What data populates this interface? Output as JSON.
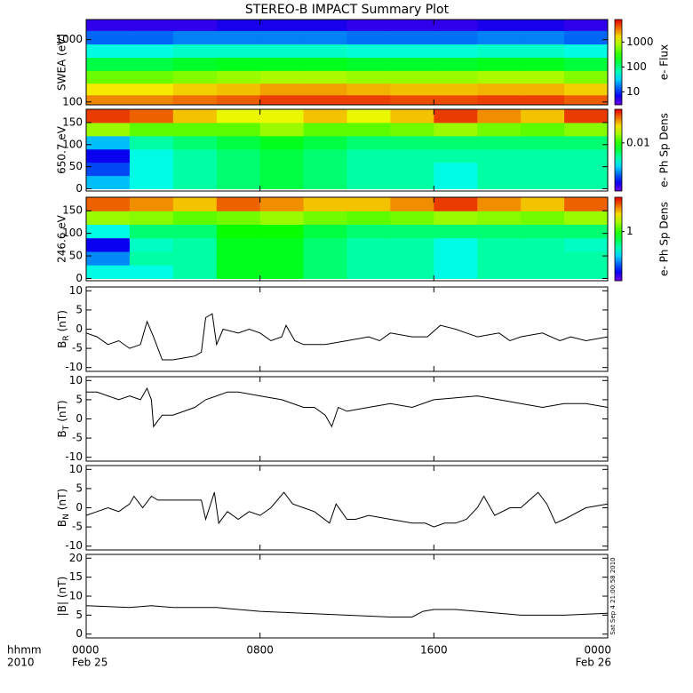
{
  "chart_data": [
    {
      "type": "heatmap",
      "title": "STEREO-B IMPACT Summary Plot",
      "ylabel": "SWEA (eV)",
      "ylog": true,
      "ylim": [
        90,
        2100
      ],
      "yticks": [
        100,
        1000
      ],
      "x_bins": [
        0,
        2,
        4,
        6,
        8,
        10,
        12,
        14,
        16,
        18,
        20,
        22,
        24
      ],
      "y_bins": [
        90,
        130,
        200,
        320,
        520,
        850,
        1400,
        2100
      ],
      "z": [
        [
          3000,
          3000,
          3500,
          4000,
          5000,
          5000,
          5000,
          4500,
          4500,
          5000,
          5000,
          4000
        ],
        [
          1500,
          1500,
          1800,
          2000,
          2500,
          2500,
          2200,
          2000,
          2000,
          2200,
          2200,
          1800
        ],
        [
          500,
          500,
          600,
          700,
          800,
          800,
          700,
          700,
          700,
          800,
          800,
          600
        ],
        [
          150,
          150,
          180,
          200,
          200,
          200,
          180,
          180,
          180,
          200,
          200,
          160
        ],
        [
          50,
          50,
          60,
          60,
          60,
          60,
          55,
          55,
          55,
          60,
          60,
          50
        ],
        [
          15,
          15,
          18,
          18,
          18,
          18,
          16,
          16,
          16,
          18,
          18,
          15
        ],
        [
          5,
          5,
          5,
          6,
          6,
          6,
          5,
          5,
          5,
          6,
          6,
          5
        ]
      ],
      "zlog": true,
      "zlim": [
        3,
        8000
      ],
      "zticks": [
        10,
        100,
        1000
      ],
      "colorbar_label": "e- Flux"
    },
    {
      "type": "heatmap",
      "ylabel": "650.7 eV",
      "ylog": false,
      "ylim": [
        -5,
        180
      ],
      "yticks": [
        0,
        50,
        100,
        150
      ],
      "x_bins": [
        0,
        2,
        4,
        6,
        8,
        10,
        12,
        14,
        16,
        18,
        20,
        22,
        24
      ],
      "y_bins": [
        0,
        30,
        60,
        90,
        120,
        150,
        180
      ],
      "z": [
        [
          0.003,
          0.004,
          0.005,
          0.006,
          0.007,
          0.006,
          0.005,
          0.005,
          0.004,
          0.005,
          0.005,
          0.005
        ],
        [
          0.002,
          0.004,
          0.005,
          0.006,
          0.007,
          0.006,
          0.005,
          0.005,
          0.004,
          0.005,
          0.005,
          0.005
        ],
        [
          0.0015,
          0.004,
          0.005,
          0.006,
          0.007,
          0.006,
          0.005,
          0.005,
          0.005,
          0.005,
          0.005,
          0.005
        ],
        [
          0.003,
          0.005,
          0.006,
          0.007,
          0.008,
          0.007,
          0.006,
          0.006,
          0.006,
          0.006,
          0.006,
          0.006
        ],
        [
          0.015,
          0.012,
          0.012,
          0.012,
          0.015,
          0.012,
          0.012,
          0.013,
          0.015,
          0.013,
          0.012,
          0.014
        ],
        [
          0.04,
          0.035,
          0.025,
          0.02,
          0.02,
          0.025,
          0.02,
          0.025,
          0.04,
          0.03,
          0.025,
          0.04
        ]
      ],
      "zlog": true,
      "zlim": [
        0.001,
        0.05
      ],
      "zticks": [
        0.01
      ],
      "colorbar_label": "e- Ph Sp Dens"
    },
    {
      "type": "heatmap",
      "ylabel": "246.6 eV",
      "ylog": false,
      "ylim": [
        -5,
        180
      ],
      "yticks": [
        0,
        50,
        100,
        150
      ],
      "x_bins": [
        0,
        2,
        4,
        6,
        8,
        10,
        12,
        14,
        16,
        18,
        20,
        22,
        24
      ],
      "y_bins": [
        0,
        30,
        60,
        90,
        120,
        150,
        180
      ],
      "z": [
        [
          0.4,
          0.4,
          0.5,
          0.8,
          0.8,
          0.6,
          0.5,
          0.5,
          0.4,
          0.5,
          0.5,
          0.5
        ],
        [
          0.25,
          0.5,
          0.5,
          0.8,
          0.8,
          0.6,
          0.5,
          0.5,
          0.4,
          0.5,
          0.5,
          0.5
        ],
        [
          0.15,
          0.45,
          0.5,
          0.8,
          0.8,
          0.6,
          0.5,
          0.5,
          0.4,
          0.5,
          0.5,
          0.45
        ],
        [
          0.4,
          0.6,
          0.6,
          0.9,
          0.9,
          0.7,
          0.6,
          0.6,
          0.6,
          0.6,
          0.6,
          0.6
        ],
        [
          1.5,
          1.4,
          1.2,
          1.3,
          1.5,
          1.3,
          1.2,
          1.3,
          1.5,
          1.4,
          1.3,
          1.5
        ],
        [
          3.5,
          3,
          2.5,
          3.5,
          3,
          2.5,
          2.5,
          3,
          4,
          3,
          2.5,
          3.5
        ]
      ],
      "zlog": true,
      "zlim": [
        0.1,
        5
      ],
      "zticks": [
        1
      ],
      "colorbar_label": "e- Ph Sp Dens"
    },
    {
      "type": "line",
      "ylabel": [
        "B",
        "R",
        "(nT)"
      ],
      "ylim": [
        -11,
        11
      ],
      "yticks": [
        -10,
        -5,
        0,
        5,
        10
      ],
      "color": "#000000",
      "x": [
        0,
        0.5,
        1,
        1.5,
        2,
        2.5,
        2.8,
        3.1,
        3.5,
        4,
        4.5,
        5,
        5.3,
        5.5,
        5.8,
        6,
        6.3,
        7,
        7.5,
        8,
        8.5,
        9,
        9.2,
        9.6,
        10,
        11,
        12,
        13,
        13.5,
        14,
        15,
        15.7,
        16.3,
        17,
        17.5,
        18,
        19,
        19.5,
        20,
        21,
        21.8,
        22.3,
        23,
        24
      ],
      "values": [
        -1,
        -2,
        -4,
        -3,
        -5,
        -4,
        2,
        -2,
        -8,
        -8,
        -7.5,
        -7,
        -6,
        3,
        4,
        -4,
        0,
        -1,
        0,
        -1,
        -3,
        -2,
        1,
        -3,
        -4,
        -4,
        -3,
        -2,
        -3,
        -1,
        -2,
        -2,
        1,
        0,
        -1,
        -2,
        -1,
        -3,
        -2,
        -1,
        -3,
        -2,
        -3,
        -2
      ]
    },
    {
      "type": "line",
      "ylabel": [
        "B",
        "T",
        "(nT)"
      ],
      "ylim": [
        -11,
        11
      ],
      "yticks": [
        -10,
        -5,
        0,
        5,
        10
      ],
      "color": "#000000",
      "x": [
        0,
        0.5,
        1,
        1.5,
        2,
        2.5,
        2.8,
        3,
        3.1,
        3.5,
        4,
        4.5,
        5,
        5.5,
        6,
        6.5,
        7,
        8,
        9,
        10,
        10.5,
        11,
        11.3,
        11.6,
        12,
        13,
        14,
        15,
        16,
        17,
        18,
        19,
        20,
        21,
        22,
        23,
        24
      ],
      "values": [
        7,
        7,
        6,
        5,
        6,
        5,
        8,
        5,
        -2,
        1,
        1,
        2,
        3,
        5,
        6,
        7,
        7,
        6,
        5,
        3,
        3,
        1,
        -2,
        3,
        2,
        3,
        4,
        3,
        5,
        5.5,
        6,
        5,
        4,
        3,
        4,
        4,
        3
      ]
    },
    {
      "type": "line",
      "ylabel": [
        "B",
        "N",
        "(nT)"
      ],
      "ylim": [
        -11,
        11
      ],
      "yticks": [
        -10,
        -5,
        0,
        5,
        10
      ],
      "color": "#000000",
      "x": [
        0,
        0.5,
        1,
        1.5,
        2,
        2.2,
        2.6,
        3,
        3.3,
        4,
        5,
        5.3,
        5.5,
        5.9,
        6.1,
        6.5,
        7,
        7.5,
        8,
        8.5,
        9.1,
        9.5,
        10,
        10.5,
        11.2,
        11.5,
        12,
        12.4,
        13,
        14,
        15,
        15.6,
        16,
        16.5,
        17,
        17.5,
        18,
        18.3,
        18.8,
        19.5,
        20,
        20.8,
        21.2,
        21.6,
        22,
        23,
        24
      ],
      "values": [
        -2,
        -1,
        0,
        -1,
        1,
        3,
        0,
        3,
        2,
        2,
        2,
        2,
        -3,
        4,
        -4,
        -1,
        -3,
        -1,
        -2,
        0,
        4,
        1,
        0,
        -1,
        -4,
        1,
        -3,
        -3,
        -2,
        -3,
        -4,
        -4,
        -5,
        -4,
        -4,
        -3,
        0,
        3,
        -2,
        0,
        0,
        4,
        1,
        -4,
        -3,
        0,
        1
      ]
    },
    {
      "type": "line",
      "ylabel": [
        "|B|",
        "",
        "(nT)"
      ],
      "ylim": [
        -1,
        21
      ],
      "yticks": [
        0,
        5,
        10,
        15,
        20
      ],
      "color": "#000000",
      "x": [
        0,
        2,
        3,
        4,
        6,
        8,
        10,
        12,
        14,
        15,
        15.5,
        16,
        17,
        18,
        20,
        22,
        24
      ],
      "values": [
        7.5,
        7,
        7.5,
        7,
        7,
        6,
        5.5,
        5,
        4.5,
        4.5,
        6,
        6.5,
        6.5,
        6,
        5,
        5,
        5.5
      ],
      "xlim": [
        0,
        24
      ],
      "xticks": [
        {
          "value": 0,
          "label": "0000",
          "date": "Feb 25"
        },
        {
          "value": 8,
          "label": "0800"
        },
        {
          "value": 16,
          "label": "1600"
        },
        {
          "value": 24,
          "label": "0000",
          "date": "Feb 26"
        }
      ],
      "xlabel": [
        "hhmm",
        "2010"
      ],
      "annotation": "Sat Sep  4 21:00:58 2010"
    }
  ]
}
